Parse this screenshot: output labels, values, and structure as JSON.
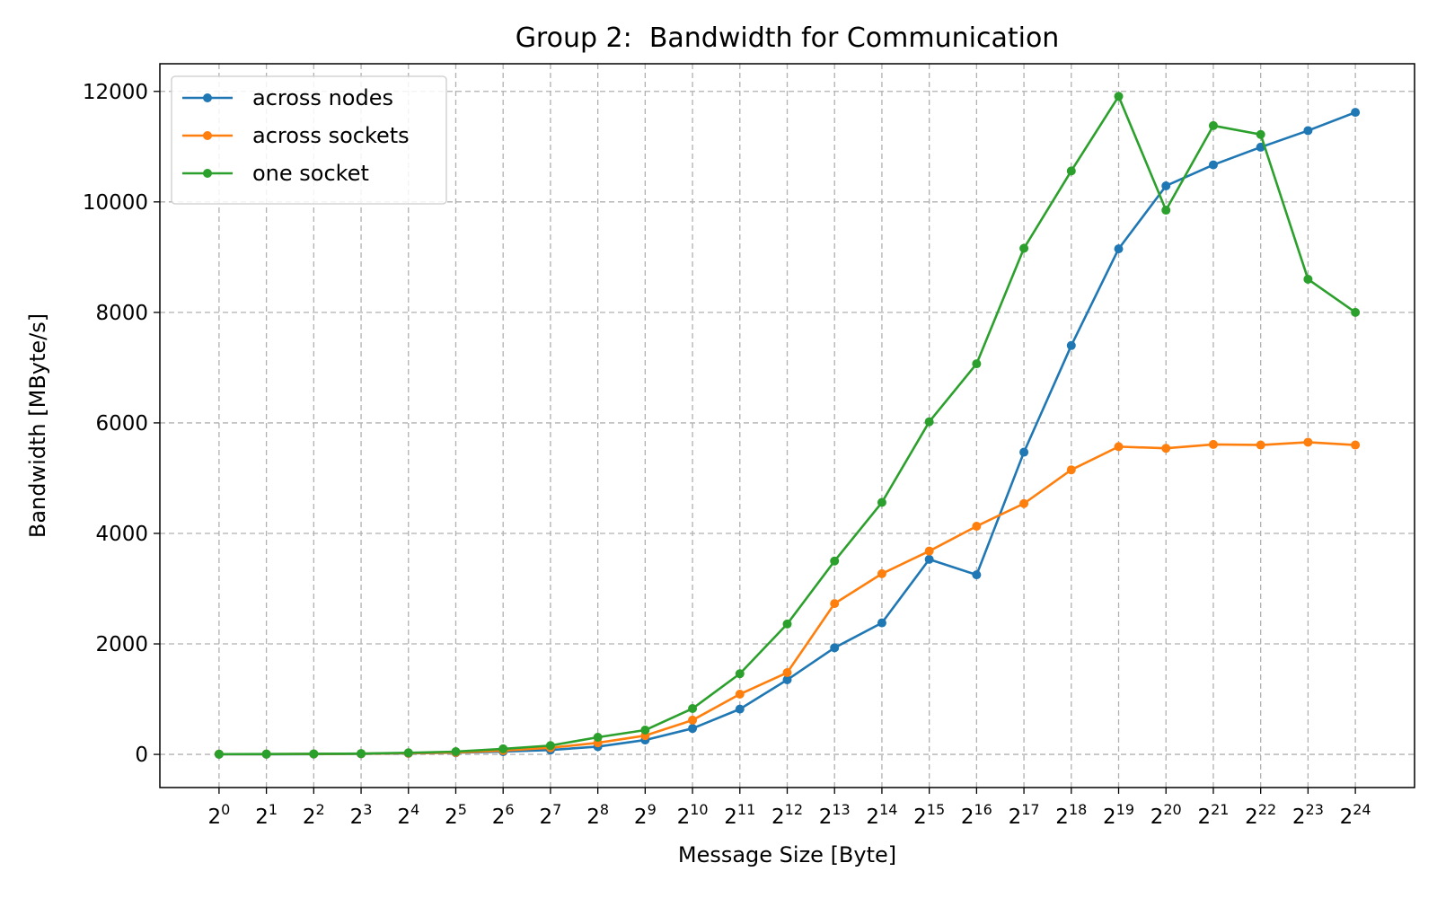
{
  "chart_data": {
    "type": "line",
    "title": "Group 2:  Bandwidth for Communication",
    "xlabel": "Message Size [Byte]",
    "ylabel": "Bandwidth [MByte/s]",
    "x_base": "2",
    "x": [
      0,
      1,
      2,
      3,
      4,
      5,
      6,
      7,
      8,
      9,
      10,
      11,
      12,
      13,
      14,
      15,
      16,
      17,
      18,
      19,
      20,
      21,
      22,
      23,
      24
    ],
    "ylim": [
      -600,
      12500
    ],
    "yticks": [
      0,
      2000,
      4000,
      6000,
      8000,
      10000,
      12000
    ],
    "grid": true,
    "legend_position": "upper-left",
    "series": [
      {
        "name": "across nodes",
        "color": "#1f77b4",
        "values": [
          2,
          3,
          5,
          10,
          18,
          30,
          50,
          80,
          140,
          260,
          470,
          820,
          1350,
          1930,
          2380,
          3530,
          3250,
          5470,
          7400,
          9150,
          10290,
          10670,
          10990,
          11290,
          11620
        ]
      },
      {
        "name": "across sockets",
        "color": "#ff7f0e",
        "values": [
          5,
          5,
          8,
          12,
          22,
          35,
          70,
          120,
          210,
          340,
          620,
          1090,
          1480,
          2730,
          3270,
          3680,
          4130,
          4540,
          5150,
          5570,
          5540,
          5610,
          5600,
          5650,
          5600
        ]
      },
      {
        "name": "one socket",
        "color": "#2ca02c",
        "values": [
          5,
          7,
          10,
          15,
          30,
          50,
          100,
          160,
          310,
          440,
          830,
          1460,
          2360,
          3500,
          4560,
          6020,
          7070,
          9160,
          10560,
          11910,
          9850,
          11380,
          11220,
          8600,
          8000
        ]
      }
    ]
  }
}
